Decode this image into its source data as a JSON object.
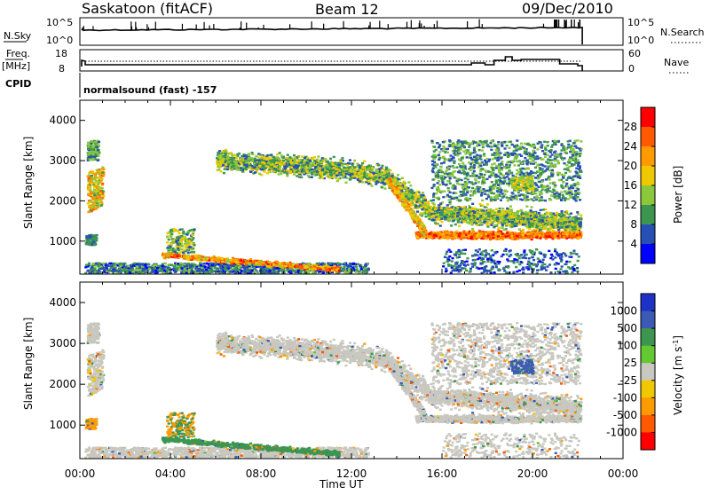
{
  "header": {
    "station": "Saskatoon (fitACF)",
    "beam": "Beam 12",
    "date": "09/Dec/2010"
  },
  "top_panels": {
    "nsky_label": "N.Sky",
    "nsky_ticks": [
      "10^5",
      "10^0"
    ],
    "nsearch_label": "N.Search",
    "nsearch_ticks": [
      "10^5",
      "10^0"
    ],
    "freq_label": "Freq.",
    "freq_unit": "[MHz]",
    "freq_ticks": [
      "18",
      "8"
    ],
    "nave_label": "Nave",
    "nave_ticks": [
      "60",
      "0"
    ],
    "cpid_label": "CPID",
    "cpid_text": "normalsound (fast) -157"
  },
  "power_colorbar": {
    "label": "Power [dB]",
    "ticks": [
      "28",
      "24",
      "20",
      "16",
      "12",
      "8",
      "4"
    ],
    "colors": [
      "#ff0000",
      "#ff5a00",
      "#ff9a00",
      "#f0c800",
      "#8cc83c",
      "#3c9650",
      "#2850b4",
      "#0000ff"
    ]
  },
  "velocity_colorbar": {
    "label": "Velocity [m s",
    "superscript": "-1",
    "label_end": "]",
    "ticks": [
      "1000",
      "500",
      "100",
      "25",
      "-25",
      "-100",
      "-500",
      "-1000"
    ],
    "colors": [
      "#1e32c8",
      "#3c5ab4",
      "#3c9650",
      "#64c832",
      "#c8c8c0",
      "#f0c800",
      "#ff9a00",
      "#ff5a00",
      "#ff0000"
    ]
  },
  "x_axis": {
    "label": "Time UT",
    "ticks": [
      "00:00",
      "04:00",
      "08:00",
      "12:00",
      "16:00",
      "20:00",
      "00:00"
    ]
  },
  "y_axis": {
    "label": "Slant Range [km]",
    "ticks": [
      "4000",
      "3000",
      "2000",
      "1000"
    ]
  },
  "chart_data": [
    {
      "type": "heatmap",
      "title": "Power",
      "x_unit": "hours UT",
      "xlim": [
        0,
        24
      ],
      "y_unit": "km",
      "ylim": [
        180,
        4500
      ],
      "data_end_hour": 22.2,
      "regions": [
        {
          "name": "early scatter near 3300 km",
          "t": [
            0.3,
            0.8
          ],
          "range": [
            2900,
            3500
          ],
          "power_db": 10
        },
        {
          "name": "early scatter near 2000 km",
          "t": [
            0.3,
            1.1
          ],
          "range": [
            1600,
            2600
          ],
          "power_db": 16
        },
        {
          "name": "main band",
          "t": [
            6.0,
            22.1
          ],
          "range_start": 2800,
          "range_end": 1150,
          "power_db": 14
        },
        {
          "name": "strong near-range echoes",
          "t": [
            14.5,
            22.1
          ],
          "range": [
            900,
            1300
          ],
          "power_db": 26
        },
        {
          "name": "low-range echoes",
          "t": [
            3.5,
            12.0
          ],
          "range": [
            200,
            800
          ],
          "power_db": 20
        }
      ]
    },
    {
      "type": "heatmap",
      "title": "Velocity",
      "x_unit": "hours UT",
      "xlim": [
        0,
        24
      ],
      "y_unit": "km",
      "ylim": [
        180,
        4500
      ],
      "data_end_hour": 22.2,
      "regions": [
        {
          "name": "ground scatter band",
          "t": [
            6.0,
            22.1
          ],
          "range_start": 3000,
          "range_end": 1200,
          "velocity": 0
        },
        {
          "name": "low-range flow",
          "t": [
            3.5,
            12.0
          ],
          "range": [
            200,
            700
          ],
          "velocity": 80
        },
        {
          "name": "late feature near 2300 km",
          "t": [
            19.0,
            20.0
          ],
          "range": [
            2200,
            2600
          ],
          "velocity": 200
        }
      ]
    }
  ]
}
